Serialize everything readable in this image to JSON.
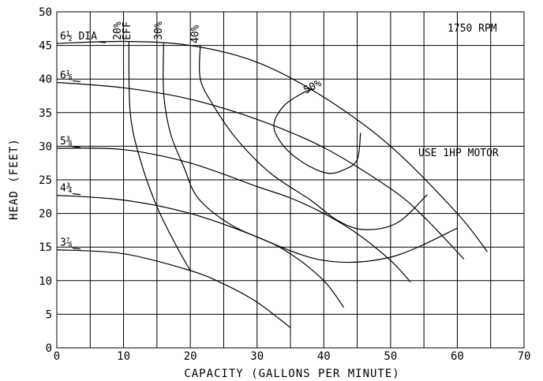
{
  "chart_data": {
    "type": "line",
    "title": "",
    "xlabel": "CAPACITY (GALLONS PER MINUTE)",
    "ylabel": "HEAD (FEET)",
    "xlim": [
      0,
      70
    ],
    "ylim": [
      0,
      50
    ],
    "x_ticks": [
      0,
      10,
      20,
      30,
      40,
      50,
      60,
      70
    ],
    "y_ticks": [
      0,
      5,
      10,
      15,
      20,
      25,
      30,
      35,
      40,
      45,
      50
    ],
    "grid": true,
    "annotations": [
      {
        "id": "rpm",
        "text": "1750 RPM"
      },
      {
        "id": "motor",
        "text": "USE 1HP MOTOR"
      }
    ],
    "head_capacity_curves": [
      {
        "label": "6½ DIA",
        "points": [
          [
            0,
            45.3
          ],
          [
            10,
            45.6
          ],
          [
            20,
            45.0
          ],
          [
            30,
            42.5
          ],
          [
            40,
            37.3
          ],
          [
            50,
            30.0
          ],
          [
            60,
            20.0
          ],
          [
            64.5,
            14.3
          ]
        ]
      },
      {
        "label": "6⅛",
        "points": [
          [
            0,
            39.5
          ],
          [
            10,
            38.7
          ],
          [
            20,
            37.0
          ],
          [
            30,
            34.0
          ],
          [
            40,
            29.8
          ],
          [
            50,
            23.7
          ],
          [
            55,
            19.5
          ],
          [
            61,
            13.2
          ]
        ]
      },
      {
        "label": "5⅜",
        "points": [
          [
            0,
            29.7
          ],
          [
            10,
            29.5
          ],
          [
            20,
            27.5
          ],
          [
            30,
            24.0
          ],
          [
            35,
            22.3
          ],
          [
            40,
            20.0
          ],
          [
            45,
            17.0
          ],
          [
            50,
            13.0
          ],
          [
            53,
            9.8
          ]
        ]
      },
      {
        "label": "4¾",
        "points": [
          [
            0,
            22.7
          ],
          [
            10,
            22.0
          ],
          [
            20,
            20.0
          ],
          [
            30,
            16.5
          ],
          [
            35,
            14.0
          ],
          [
            40,
            10.0
          ],
          [
            43,
            6.0
          ]
        ]
      },
      {
        "label": "3⅞",
        "points": [
          [
            0,
            14.6
          ],
          [
            10,
            14.0
          ],
          [
            20,
            11.5
          ],
          [
            25,
            9.5
          ],
          [
            30,
            6.8
          ],
          [
            35,
            3.0
          ]
        ]
      }
    ],
    "efficiency_curves": [
      {
        "label": "20%\nEFF",
        "points": [
          [
            10.8,
            45.6
          ],
          [
            11,
            35
          ],
          [
            12.5,
            28
          ],
          [
            15,
            21
          ],
          [
            18,
            15
          ],
          [
            20,
            11.5
          ]
        ]
      },
      {
        "label": "30%",
        "points": [
          [
            16,
            45.3
          ],
          [
            16,
            38
          ],
          [
            17,
            32
          ],
          [
            19,
            27
          ],
          [
            21,
            22.5
          ],
          [
            25,
            19
          ],
          [
            30,
            16.5
          ],
          [
            40,
            13
          ],
          [
            50,
            13.5
          ],
          [
            60,
            17.8
          ]
        ]
      },
      {
        "label": "40%",
        "points": [
          [
            21.5,
            45
          ],
          [
            21.5,
            40
          ],
          [
            23.5,
            36
          ],
          [
            27,
            31
          ],
          [
            32,
            26
          ],
          [
            38,
            22
          ],
          [
            42,
            19
          ],
          [
            46,
            17.6
          ],
          [
            51,
            18.6
          ],
          [
            55.5,
            22.8
          ]
        ]
      },
      {
        "label": "50%",
        "points": [
          [
            45.5,
            32
          ],
          [
            45,
            28
          ],
          [
            43,
            26.5
          ],
          [
            40.5,
            26
          ],
          [
            37,
            27.5
          ],
          [
            34,
            30
          ],
          [
            32.5,
            33
          ],
          [
            34,
            36
          ],
          [
            37,
            38
          ],
          [
            38.5,
            38.5
          ]
        ]
      }
    ]
  }
}
